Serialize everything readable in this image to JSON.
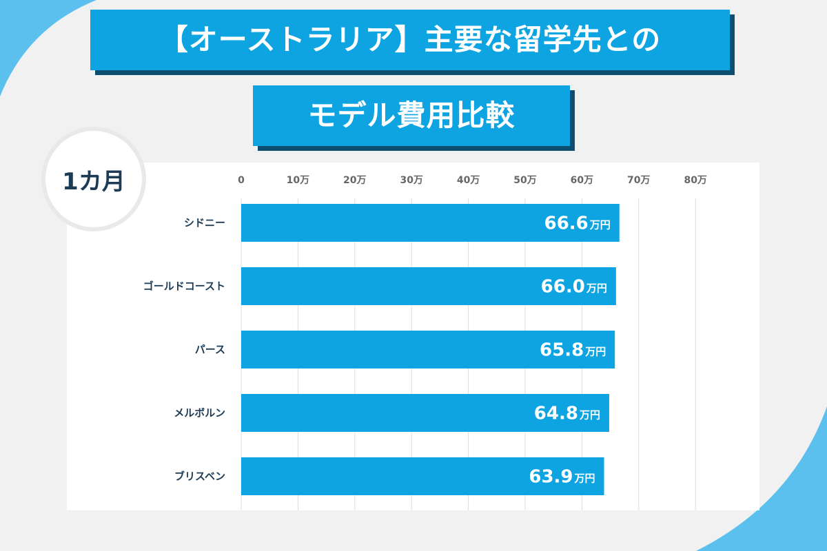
{
  "title_line1": "【オーストラリア】主要な留学先との",
  "title_line2": "モデル費用比較",
  "period": "1カ月",
  "chart_data": {
    "type": "bar",
    "orientation": "horizontal",
    "title": "【オーストラリア】主要な留学先とのモデル費用比較",
    "period": "1カ月",
    "categories": [
      "シドニー",
      "ゴールドコースト",
      "パース",
      "メルボルン",
      "ブリスベン"
    ],
    "values": [
      66.6,
      66.0,
      65.8,
      64.8,
      63.9
    ],
    "value_labels": [
      "66.6",
      "66.0",
      "65.8",
      "64.8",
      "63.9"
    ],
    "value_unit": "万円",
    "ticks": [
      0,
      10,
      20,
      30,
      40,
      50,
      60,
      70,
      80
    ],
    "tick_labels": [
      "0",
      "10万",
      "20万",
      "30万",
      "40万",
      "50万",
      "60万",
      "70万",
      "80万"
    ],
    "xlim": [
      0,
      80
    ],
    "grid": true,
    "bar_color": "#0ea4e2"
  },
  "colors": {
    "accent": "#0ea4e2",
    "shadow": "#0d4f72",
    "text_dark": "#1d3b55",
    "background": "#f1f1f2",
    "decor": "#5bc0ee"
  }
}
